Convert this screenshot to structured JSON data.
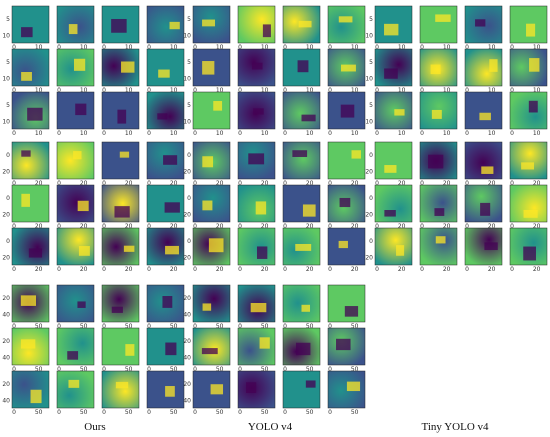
{
  "columns": [
    {
      "caption": "Ours",
      "blocks": [
        {
          "rows": 3,
          "cols": 4,
          "ticks": {
            "y": [
              "5",
              "10"
            ],
            "x": [
              "0",
              "10"
            ]
          }
        },
        {
          "rows": 3,
          "cols": 4,
          "ticks": {
            "y": [
              "0",
              "20"
            ],
            "x": [
              "0",
              "20"
            ]
          }
        },
        {
          "rows": 3,
          "cols": 4,
          "ticks": {
            "y": [
              "20",
              "40"
            ],
            "x": [
              "0",
              "50"
            ]
          }
        }
      ]
    },
    {
      "caption": "YOLO v4",
      "blocks": [
        {
          "rows": 3,
          "cols": 4,
          "ticks": {
            "y": [
              "5",
              "10"
            ],
            "x": [
              "0",
              "10"
            ]
          }
        },
        {
          "rows": 3,
          "cols": 4,
          "ticks": {
            "y": [
              "0",
              "20"
            ],
            "x": [
              "0",
              "20"
            ]
          }
        },
        {
          "rows": 3,
          "cols": 4,
          "ticks": {
            "y": [
              "20",
              "40"
            ],
            "x": [
              "0",
              "50"
            ]
          }
        }
      ]
    },
    {
      "caption": "Tiny YOLO v4",
      "blocks": [
        {
          "rows": 3,
          "cols": 4,
          "ticks": {
            "y": [
              "5",
              "10"
            ],
            "x": [
              "0",
              "10"
            ]
          }
        },
        {
          "rows": 3,
          "cols": 4,
          "ticks": {
            "y": [
              "0",
              "20"
            ],
            "x": [
              "0",
              "20"
            ]
          }
        }
      ]
    }
  ],
  "colormap": [
    "#440154",
    "#3b528b",
    "#21918c",
    "#5ec962",
    "#fde725"
  ]
}
